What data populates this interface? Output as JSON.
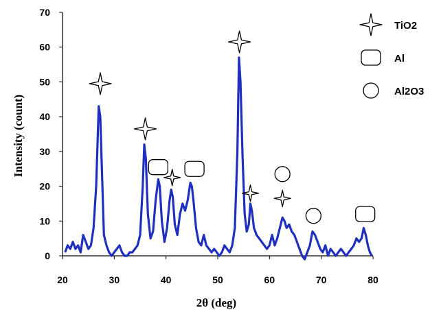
{
  "chart_data": {
    "type": "line",
    "xlabel": "2θ (deg)",
    "ylabel": "Intensity (count)",
    "xlim": [
      20,
      80
    ],
    "ylim": [
      0,
      70
    ],
    "x_ticks": [
      20,
      30,
      40,
      50,
      60,
      70,
      80
    ],
    "y_ticks": [
      0,
      10,
      20,
      30,
      40,
      50,
      60,
      70
    ],
    "grid": false,
    "legend_position": "top-right",
    "series_color": "#1f2fbf",
    "series": [
      {
        "x": [
          20.5,
          21.0,
          21.5,
          22.0,
          22.5,
          23.0,
          23.5,
          24.0,
          24.5,
          25.0,
          25.5,
          26.0,
          26.5,
          27.0,
          27.3,
          27.6,
          28.0,
          28.5,
          29.0,
          29.5,
          30.0,
          30.5,
          31.0,
          31.5,
          32.0,
          32.5,
          33.0,
          33.5,
          34.0,
          34.5,
          35.0,
          35.5,
          35.8,
          36.1,
          36.5,
          37.0,
          37.5,
          38.0,
          38.5,
          38.8,
          39.2,
          39.7,
          40.2,
          40.7,
          41.0,
          41.3,
          41.7,
          42.2,
          42.7,
          43.2,
          43.7,
          44.2,
          44.7,
          45.0,
          45.3,
          45.8,
          46.3,
          46.8,
          47.3,
          47.8,
          48.3,
          48.8,
          49.3,
          49.8,
          50.3,
          50.8,
          51.3,
          51.8,
          52.3,
          52.8,
          53.3,
          53.8,
          54.1,
          54.4,
          54.8,
          55.2,
          55.6,
          56.0,
          56.3,
          56.6,
          57.0,
          57.5,
          58.0,
          58.5,
          59.0,
          59.5,
          60.0,
          60.5,
          61.0,
          61.5,
          62.0,
          62.5,
          62.9,
          63.3,
          63.8,
          64.3,
          64.8,
          65.3,
          65.8,
          66.3,
          66.8,
          67.3,
          67.8,
          68.3,
          68.8,
          69.3,
          69.8,
          70.3,
          70.8,
          71.3,
          71.8,
          72.3,
          72.8,
          73.3,
          73.8,
          74.3,
          74.8,
          75.3,
          75.8,
          76.3,
          76.8,
          77.3,
          77.8,
          78.2,
          78.6,
          79.0,
          79.4,
          79.8
        ],
        "y": [
          1,
          3,
          2,
          4,
          2,
          3,
          1,
          6,
          4,
          2,
          3,
          8,
          20,
          43,
          40,
          25,
          6,
          3,
          1,
          0,
          1,
          2,
          3,
          1,
          0,
          0,
          1,
          1,
          2,
          3,
          6,
          20,
          32,
          28,
          12,
          5,
          7,
          16,
          22,
          20,
          10,
          4,
          8,
          16,
          19,
          17,
          9,
          6,
          12,
          15,
          13,
          16,
          21,
          20,
          16,
          8,
          4,
          3,
          6,
          3,
          2,
          1,
          2,
          1,
          0,
          1,
          3,
          2,
          1,
          3,
          8,
          30,
          57,
          50,
          28,
          12,
          7,
          9,
          15,
          13,
          8,
          6,
          5,
          4,
          3,
          2,
          3,
          6,
          3,
          5,
          8,
          11,
          10,
          8,
          9,
          7,
          6,
          4,
          2,
          0,
          -3,
          1,
          3,
          7,
          6,
          4,
          2,
          1,
          3,
          0,
          2,
          1,
          0,
          1,
          2,
          1,
          0,
          1,
          2,
          3,
          5,
          4,
          5,
          8,
          6,
          3,
          1,
          0
        ]
      }
    ],
    "legend": [
      {
        "marker": "star",
        "label": "TiO2"
      },
      {
        "marker": "square",
        "label": "Al"
      },
      {
        "marker": "circle",
        "label": "Al2O3"
      }
    ],
    "peak_markers": [
      {
        "marker": "star",
        "x": 27.3,
        "y": 49.5
      },
      {
        "marker": "star",
        "x": 36.0,
        "y": 36.5
      },
      {
        "marker": "square",
        "x": 38.5,
        "y": 25.5
      },
      {
        "marker": "star",
        "x": 41.2,
        "y": 22.5
      },
      {
        "marker": "square",
        "x": 45.5,
        "y": 25.0
      },
      {
        "marker": "star",
        "x": 54.2,
        "y": 61.5
      },
      {
        "marker": "star",
        "x": 56.3,
        "y": 18.0
      },
      {
        "marker": "circle",
        "x": 62.5,
        "y": 23.5
      },
      {
        "marker": "star",
        "x": 62.5,
        "y": 16.5
      },
      {
        "marker": "circle",
        "x": 68.5,
        "y": 11.5
      },
      {
        "marker": "square",
        "x": 78.5,
        "y": 12.0
      }
    ]
  }
}
